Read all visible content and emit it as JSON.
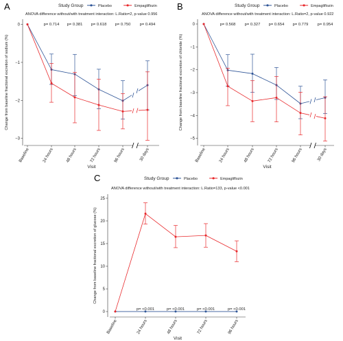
{
  "colors": {
    "placebo": "#2F5597",
    "empagliflozin": "#E8282B",
    "axis": "#333333",
    "text": "#222222"
  },
  "legend_title": "Study Group",
  "chart_data": [
    {
      "panel_label": "A",
      "type": "line",
      "title": "ANOVA difference without/with treatment interaction: L.Ratio=2, p-value 0.956",
      "xlabel": "Visit",
      "ylabel": "Change from baseline fractional excretion of sodium (%)",
      "categories": [
        "Baseline",
        "24 hours",
        "48 hours",
        "72 hours",
        "96 hours",
        "30 days"
      ],
      "axis_break_after": "96 hours",
      "grid": false,
      "legend_position": "top",
      "ylim": [
        -3.15,
        0.1
      ],
      "yticks": [
        0,
        -1,
        -2,
        -3
      ],
      "pvalue_labels": [
        "p= 0.714",
        "p= 0.381",
        "p= 0.618",
        "p= 0.750",
        "p= 0.494"
      ],
      "series": [
        {
          "name": "Placebo",
          "color": "#2F5597",
          "values": [
            0,
            -1.19,
            -1.31,
            -1.71,
            -2.01,
            -1.6
          ],
          "lower": [
            0,
            -1.58,
            -1.88,
            -2.22,
            -2.49,
            -2.25
          ],
          "upper": [
            0,
            -0.78,
            -0.79,
            -1.18,
            -1.48,
            -0.96
          ]
        },
        {
          "name": "Empagliflozin",
          "color": "#E8282B",
          "values": [
            0,
            -1.55,
            -1.92,
            -2.12,
            -2.29,
            -2.25
          ],
          "lower": [
            0,
            -2.05,
            -2.59,
            -2.79,
            -2.75,
            -3.05
          ],
          "upper": [
            0,
            -1.03,
            -1.26,
            -1.44,
            -1.82,
            -1.25
          ]
        }
      ]
    },
    {
      "panel_label": "B",
      "type": "line",
      "title": "ANOVA difference without/with treatment interaction: L.Ratio=2, p-value 0.922",
      "xlabel": "Visit",
      "ylabel": "Change from baseline fractional excretion of chloride (%)",
      "categories": [
        "Baseline",
        "24 hours",
        "48 hours",
        "72 hours",
        "96 hours",
        "30 days"
      ],
      "axis_break_after": "96 hours",
      "grid": false,
      "legend_position": "top",
      "ylim": [
        -5.25,
        0.15
      ],
      "yticks": [
        0,
        -1,
        -2,
        -3,
        -4,
        -5
      ],
      "pvalue_labels": [
        "p= 0.568",
        "p= 0.327",
        "p= 0.654",
        "p= 0.779",
        "p= 0.954"
      ],
      "series": [
        {
          "name": "Placebo",
          "color": "#2F5597",
          "values": [
            0,
            -2.02,
            -2.17,
            -2.67,
            -3.48,
            -3.22
          ],
          "lower": [
            0,
            -2.72,
            -2.99,
            -3.3,
            -4.14,
            -3.92
          ],
          "upper": [
            0,
            -1.34,
            -1.32,
            -1.9,
            -2.72,
            -2.44
          ]
        },
        {
          "name": "Empagliflozin",
          "color": "#E8282B",
          "values": [
            0,
            -2.72,
            -3.37,
            -3.22,
            -3.89,
            -4.12
          ],
          "lower": [
            0,
            -3.57,
            -4.27,
            -4.28,
            -4.85,
            -5.12
          ],
          "upper": [
            0,
            -1.93,
            -2.48,
            -2.3,
            -2.98,
            -3.18
          ]
        }
      ]
    },
    {
      "panel_label": "C",
      "type": "line",
      "title": "ANOVA difference without/with treatment interaction: L.Ratio=133, p-value <0.001",
      "xlabel": "Visit",
      "ylabel": "Change from baseline fractional excretion of glucose (%)",
      "categories": [
        "Baseline",
        "24 hours",
        "48 hours",
        "72 hours",
        "96 hours"
      ],
      "grid": false,
      "legend_position": "top",
      "ylim": [
        -0.9,
        25.6
      ],
      "yticks": [
        0,
        5,
        10,
        15,
        20,
        25
      ],
      "pvalue_labels": [
        "p= <0.001",
        "p= <0.001",
        "p= <0.001",
        "p= <0.001"
      ],
      "series": [
        {
          "name": "Placebo",
          "color": "#2F5597",
          "values": [
            0,
            0,
            0,
            0,
            0
          ],
          "lower": [
            0,
            0,
            0,
            0,
            0
          ],
          "upper": [
            0,
            0,
            0,
            0,
            0
          ]
        },
        {
          "name": "Empagliflozin",
          "color": "#E8282B",
          "values": [
            0,
            21.6,
            16.5,
            16.8,
            13.3
          ],
          "lower": [
            0,
            19.3,
            14.1,
            14.2,
            11.0
          ],
          "upper": [
            0,
            24.0,
            19.0,
            19.4,
            15.6
          ]
        }
      ]
    }
  ]
}
